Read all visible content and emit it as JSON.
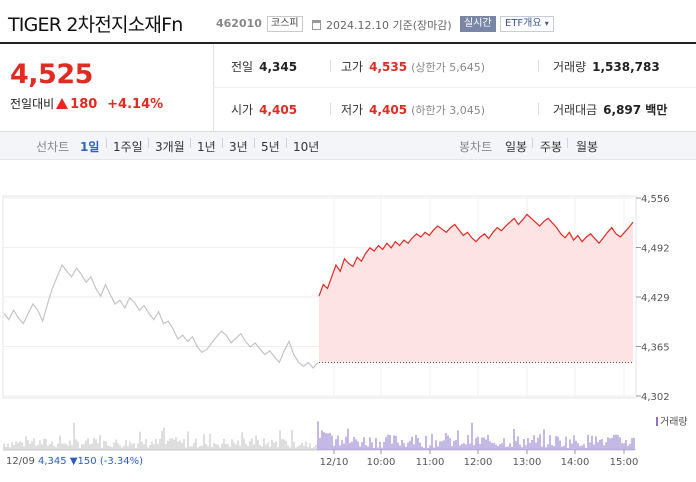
{
  "header": {
    "title": "TIGER 2차전지소재Fn",
    "code": "462010",
    "market": "코스피",
    "date": "2024.12.10 기준(장마감)",
    "realtime": "실시간",
    "etf_button": "ETF개요",
    "etf_icon": "chevron-down-icon"
  },
  "price": {
    "current": "4,525",
    "change_label": "전일대비",
    "change": "180",
    "change_pct": "+4.14%",
    "prev_close_label": "전일",
    "prev_close": "4,345",
    "high_label": "고가",
    "high": "4,535",
    "upper_limit": "(상한가 5,645)",
    "volume_label": "거래량",
    "volume": "1,538,783",
    "open_label": "시가",
    "open": "4,405",
    "low_label": "저가",
    "low": "4,405",
    "lower_limit": "(하한가 3,045)",
    "amount_label": "거래대금",
    "amount": "6,897 백만"
  },
  "periods": {
    "line_label": "선차트",
    "line_items": [
      "1일",
      "1주일",
      "3개월",
      "1년",
      "3년",
      "5년",
      "10년"
    ],
    "active": "1일",
    "candle_label": "봉차트",
    "candle_items": [
      "일봉",
      "주봉",
      "월봉"
    ]
  },
  "colors": {
    "up": "#e02a22",
    "down": "#2a5cc4",
    "prev_day_line": "#c4c4c4",
    "today_fill": "#fde3e3",
    "volume_prev": "#bdbdbd",
    "volume_today": "#8a73c9"
  },
  "chart_data": {
    "type": "line",
    "y_ticks": [
      "4,556",
      "4,492",
      "4,429",
      "4,365",
      "4,302"
    ],
    "ylim": [
      4302,
      4556
    ],
    "prev_close": 4345,
    "x_ticks": [
      "12/10",
      "10:00",
      "11:00",
      "12:00",
      "13:00",
      "14:00",
      "15:00"
    ],
    "volume_label": "거래량",
    "prev_day": {
      "date": "12/09",
      "close": "4,345",
      "change": "150",
      "change_pct": "(-3.34%)",
      "values": [
        4408,
        4400,
        4412,
        4402,
        4395,
        4408,
        4420,
        4412,
        4398,
        4420,
        4440,
        4455,
        4470,
        4462,
        4455,
        4466,
        4458,
        4448,
        4455,
        4440,
        4430,
        4445,
        4432,
        4420,
        4425,
        4415,
        4428,
        4422,
        4412,
        4418,
        4408,
        4400,
        4410,
        4395,
        4398,
        4388,
        4375,
        4380,
        4372,
        4378,
        4365,
        4358,
        4362,
        4370,
        4378,
        4385,
        4380,
        4370,
        4376,
        4382,
        4372,
        4365,
        4370,
        4362,
        4355,
        4360,
        4352,
        4345,
        4360,
        4372,
        4355,
        4345,
        4340,
        4345,
        4338,
        4345
      ]
    },
    "today": {
      "date": "12/10",
      "values": [
        4430,
        4445,
        4440,
        4455,
        4470,
        4462,
        4478,
        4472,
        4468,
        4480,
        4475,
        4485,
        4492,
        4488,
        4495,
        4490,
        4498,
        4492,
        4500,
        4495,
        4502,
        4498,
        4505,
        4510,
        4506,
        4512,
        4508,
        4515,
        4520,
        4516,
        4512,
        4518,
        4522,
        4515,
        4508,
        4512,
        4505,
        4500,
        4506,
        4510,
        4504,
        4512,
        4518,
        4514,
        4520,
        4525,
        4530,
        4522,
        4528,
        4535,
        4530,
        4525,
        4520,
        4526,
        4530,
        4524,
        4518,
        4510,
        4505,
        4512,
        4502,
        4508,
        4500,
        4506,
        4510,
        4504,
        4498,
        4505,
        4512,
        4518,
        4510,
        4506,
        4512,
        4518,
        4525
      ]
    }
  }
}
